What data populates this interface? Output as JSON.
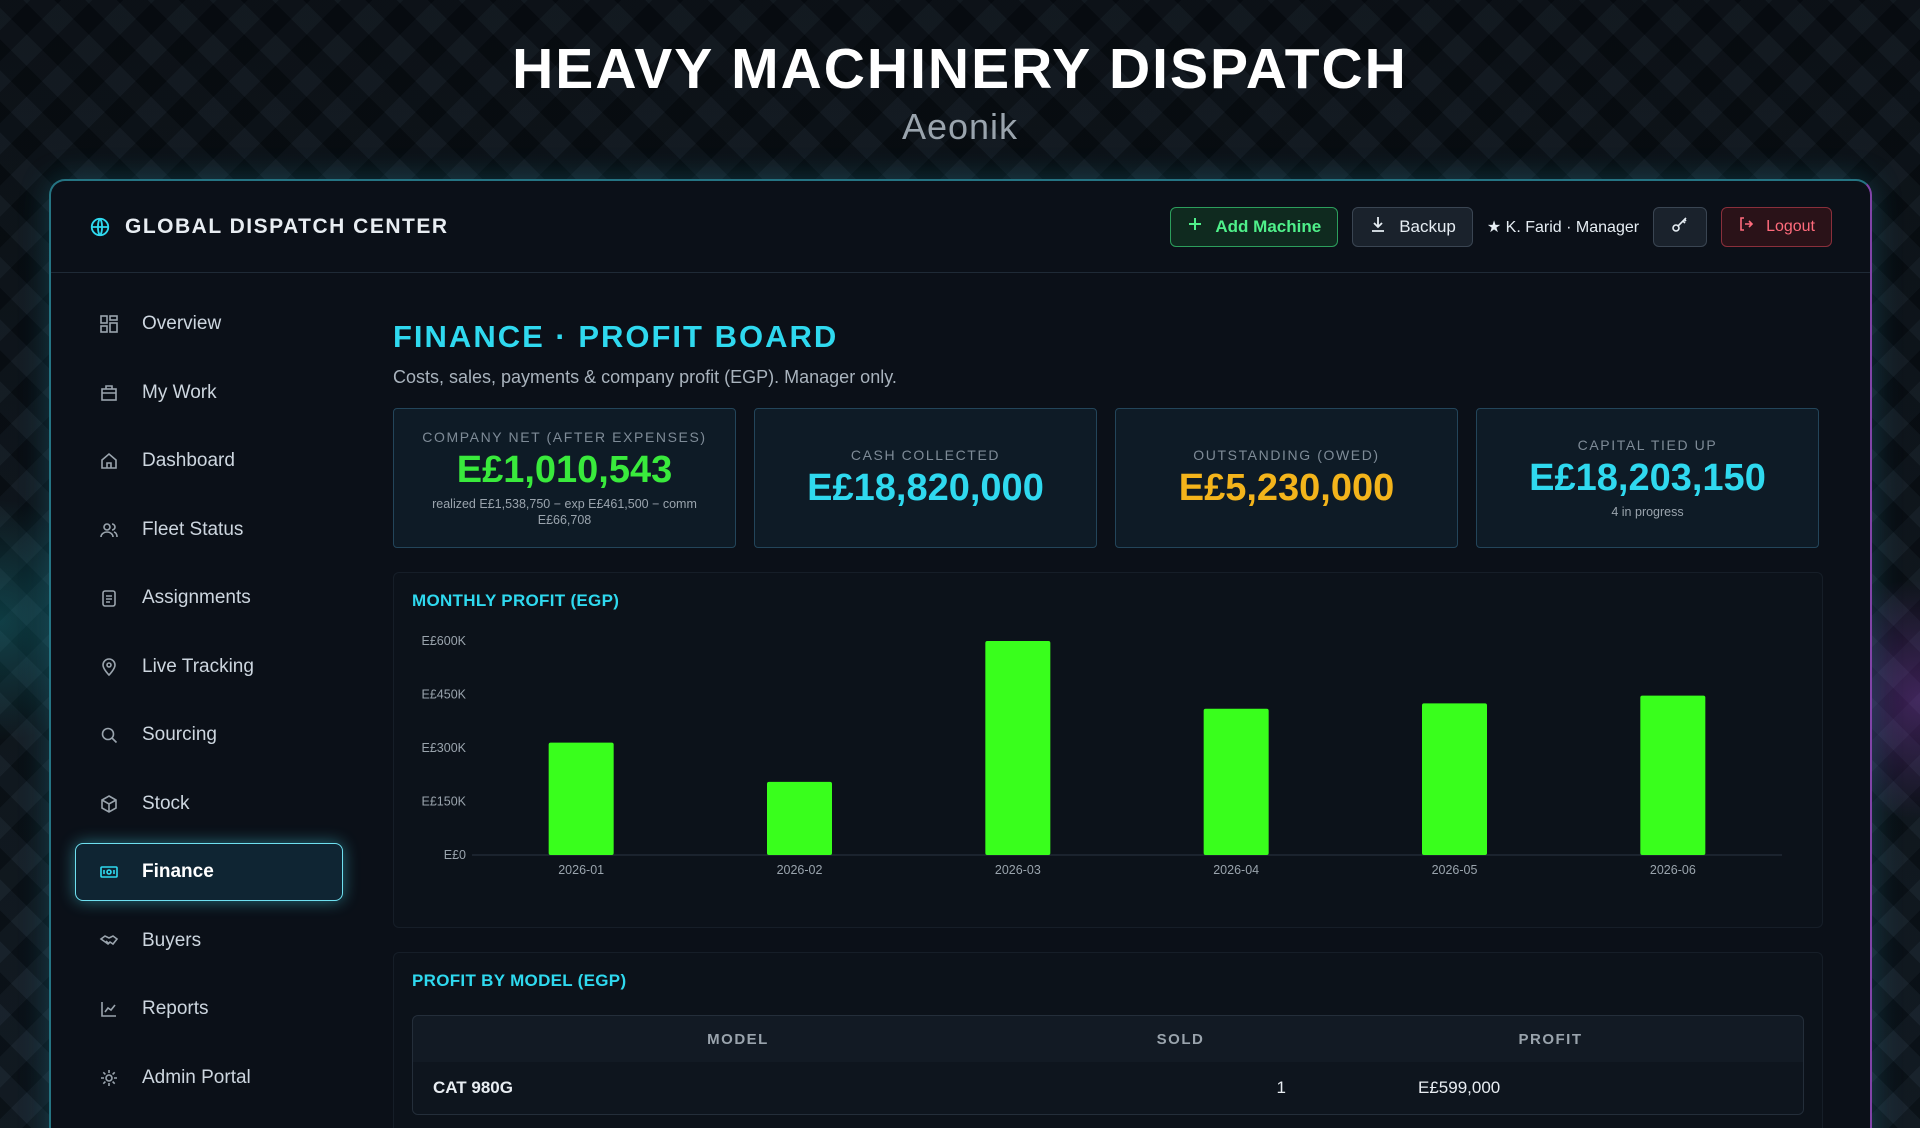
{
  "hero": {
    "title": "HEAVY MACHINERY DISPATCH",
    "subtitle": "Aeonik"
  },
  "topbar": {
    "brand": "GLOBAL DISPATCH CENTER",
    "add_machine": "Add Machine",
    "backup": "Backup",
    "user": "★ K. Farid · Manager",
    "logout": "Logout"
  },
  "sidebar": {
    "items": [
      {
        "label": "Overview",
        "icon": "grid-icon"
      },
      {
        "label": "My Work",
        "icon": "briefcase-icon"
      },
      {
        "label": "Dashboard",
        "icon": "home-icon"
      },
      {
        "label": "Fleet Status",
        "icon": "users-icon"
      },
      {
        "label": "Assignments",
        "icon": "clipboard-icon"
      },
      {
        "label": "Live Tracking",
        "icon": "map-pin-icon"
      },
      {
        "label": "Sourcing",
        "icon": "search-icon"
      },
      {
        "label": "Stock",
        "icon": "box-icon"
      },
      {
        "label": "Finance",
        "icon": "banknote-icon",
        "active": true
      },
      {
        "label": "Buyers",
        "icon": "handshake-icon"
      },
      {
        "label": "Reports",
        "icon": "line-chart-icon"
      },
      {
        "label": "Admin Portal",
        "icon": "gear-icon"
      }
    ]
  },
  "main": {
    "title": "FINANCE · PROFIT BOARD",
    "description": "Costs, sales, payments & company profit (EGP). Manager only."
  },
  "kpis": [
    {
      "label": "COMPANY NET (AFTER EXPENSES)",
      "value": "E£1,010,543",
      "note": "realized E£1,538,750 − exp E£461,500 − comm E£66,708",
      "color": "#39ea3c"
    },
    {
      "label": "CASH COLLECTED",
      "value": "E£18,820,000",
      "note": "",
      "color": "#2fd9ef"
    },
    {
      "label": "OUTSTANDING (OWED)",
      "value": "E£5,230,000",
      "note": "",
      "color": "#f3b41b"
    },
    {
      "label": "CAPITAL TIED UP",
      "value": "E£18,203,150",
      "note": "4 in progress",
      "color": "#2fd9ef"
    }
  ],
  "chart_title": "MONTHLY PROFIT (EGP)",
  "chart_data": {
    "type": "bar",
    "categories": [
      "2026-01",
      "2026-02",
      "2026-03",
      "2026-04",
      "2026-05",
      "2026-06"
    ],
    "values": [
      315000,
      205000,
      600000,
      410000,
      425000,
      447000
    ],
    "ylim": [
      0,
      600000
    ],
    "yticks": [
      0,
      150000,
      300000,
      450000,
      600000
    ],
    "ytick_labels": [
      "E£0",
      "E£150K",
      "E£300K",
      "E£450K",
      "E£600K"
    ],
    "bar_color": "#39ff1c",
    "grid": false
  },
  "profit_table": {
    "title": "PROFIT BY MODEL (EGP)",
    "headers": [
      "MODEL",
      "SOLD",
      "PROFIT"
    ],
    "rows": [
      {
        "model": "CAT 980G",
        "sold": "1",
        "profit": "E£599,000"
      }
    ]
  }
}
